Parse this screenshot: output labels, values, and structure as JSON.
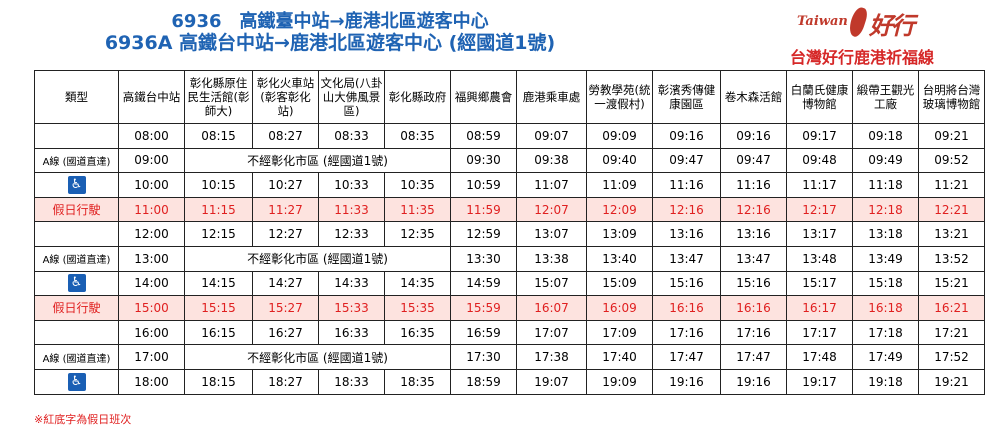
{
  "header": {
    "title_line1": "6936　高鐵臺中站→鹿港北區遊客中心",
    "title_line2": "6936A 高鐵台中站→鹿港北區遊客中心 (經國道1號)",
    "logo_text": "Taiwan",
    "logo_char": "好行",
    "logo_icon": "taiwan-map-icon",
    "route_name": "台灣好行鹿港祈福線"
  },
  "table": {
    "columns": [
      "類型",
      "高鐵台中站",
      "彰化縣原住民生活館(彰師大)",
      "彰化火車站(彰客彰化站)",
      "文化局(八卦山大佛風景區)",
      "彰化縣政府",
      "福興鄉農會",
      "鹿港乘車處",
      "勞教學苑(統一渡假村)",
      "彰濱秀傳健康園區",
      "卷木森活館",
      "白蘭氏健康博物館",
      "緞帶王觀光工廠",
      "台明將台灣玻璃博物館"
    ],
    "rows": [
      {
        "kind": "normal",
        "type": "",
        "times": [
          "08:00",
          "08:15",
          "08:27",
          "08:33",
          "08:35",
          "08:59",
          "09:07",
          "09:09",
          "09:16",
          "09:16",
          "09:17",
          "09:18",
          "09:21"
        ]
      },
      {
        "kind": "express",
        "type": "A線 (國道直達)",
        "first": "09:00",
        "note": "不經彰化市區 (經國道1號)",
        "times": [
          "09:30",
          "09:38",
          "09:40",
          "09:47",
          "09:47",
          "09:48",
          "09:49",
          "09:52"
        ]
      },
      {
        "kind": "accessible",
        "type": "♿",
        "times": [
          "10:00",
          "10:15",
          "10:27",
          "10:33",
          "10:35",
          "10:59",
          "11:07",
          "11:09",
          "11:16",
          "11:16",
          "11:17",
          "11:18",
          "11:21"
        ]
      },
      {
        "kind": "holiday",
        "type": "假日行駛",
        "times": [
          "11:00",
          "11:15",
          "11:27",
          "11:33",
          "11:35",
          "11:59",
          "12:07",
          "12:09",
          "12:16",
          "12:16",
          "12:17",
          "12:18",
          "12:21"
        ]
      },
      {
        "kind": "normal",
        "type": "",
        "times": [
          "12:00",
          "12:15",
          "12:27",
          "12:33",
          "12:35",
          "12:59",
          "13:07",
          "13:09",
          "13:16",
          "13:16",
          "13:17",
          "13:18",
          "13:21"
        ]
      },
      {
        "kind": "express",
        "type": "A線 (國道直達)",
        "first": "13:00",
        "note": "不經彰化市區 (經國道1號)",
        "times": [
          "13:30",
          "13:38",
          "13:40",
          "13:47",
          "13:47",
          "13:48",
          "13:49",
          "13:52"
        ]
      },
      {
        "kind": "accessible",
        "type": "♿",
        "times": [
          "14:00",
          "14:15",
          "14:27",
          "14:33",
          "14:35",
          "14:59",
          "15:07",
          "15:09",
          "15:16",
          "15:16",
          "15:17",
          "15:18",
          "15:21"
        ]
      },
      {
        "kind": "holiday",
        "type": "假日行駛",
        "times": [
          "15:00",
          "15:15",
          "15:27",
          "15:33",
          "15:35",
          "15:59",
          "16:07",
          "16:09",
          "16:16",
          "16:16",
          "16:17",
          "16:18",
          "16:21"
        ]
      },
      {
        "kind": "normal",
        "type": "",
        "times": [
          "16:00",
          "16:15",
          "16:27",
          "16:33",
          "16:35",
          "16:59",
          "17:07",
          "17:09",
          "17:16",
          "17:16",
          "17:17",
          "17:18",
          "17:21"
        ]
      },
      {
        "kind": "express",
        "type": "A線 (國道直達)",
        "first": "17:00",
        "note": "不經彰化市區 (經國道1號)",
        "times": [
          "17:30",
          "17:38",
          "17:40",
          "17:47",
          "17:47",
          "17:48",
          "17:49",
          "17:52"
        ]
      },
      {
        "kind": "accessible",
        "type": "♿",
        "times": [
          "18:00",
          "18:15",
          "18:27",
          "18:33",
          "18:35",
          "18:59",
          "19:07",
          "19:09",
          "19:16",
          "19:16",
          "19:17",
          "19:18",
          "19:21"
        ]
      }
    ]
  },
  "footnote": "※紅底字為假日班次",
  "colors": {
    "title_blue": "#1f63b3",
    "route_red": "#d62828",
    "holiday_bg": "#fde3df",
    "holiday_text": "#e02020",
    "note_blue": "#2f79d6",
    "accessible_blue": "#1a5fb4"
  }
}
